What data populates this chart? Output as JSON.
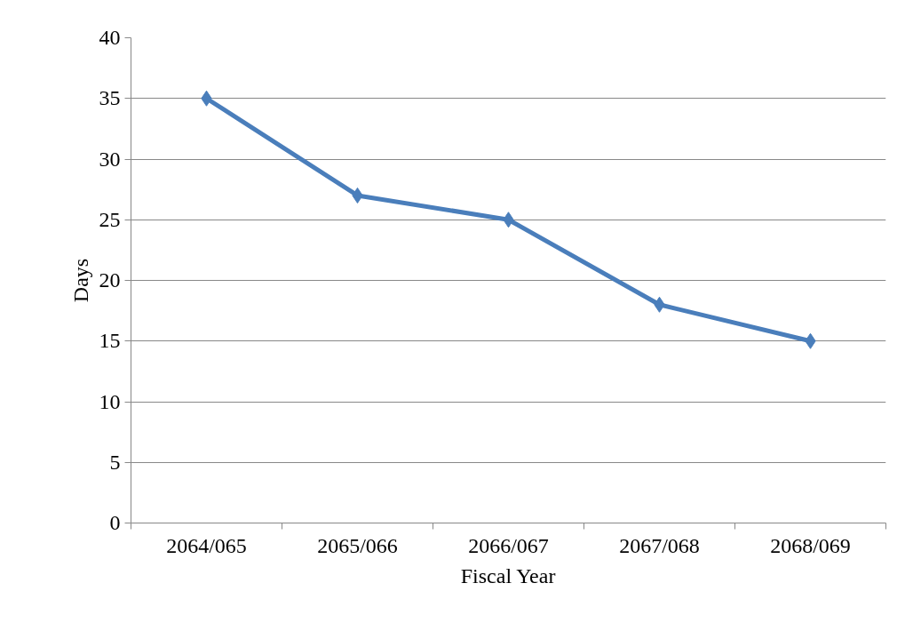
{
  "chart_data": {
    "type": "line",
    "xlabel": "Fiscal Year",
    "ylabel": "Days",
    "categories": [
      "2064/065",
      "2065/066",
      "2066/067",
      "2067/068",
      "2068/069"
    ],
    "series": [
      {
        "color": "#4a7ebb",
        "values": [
          35,
          27,
          25,
          18,
          15
        ]
      }
    ],
    "ylim": [
      0,
      40
    ],
    "yticks": [
      0,
      5,
      10,
      15,
      20,
      25,
      30,
      35,
      40
    ],
    "grid": "y",
    "marker": "diamond",
    "line_style": "solid"
  }
}
